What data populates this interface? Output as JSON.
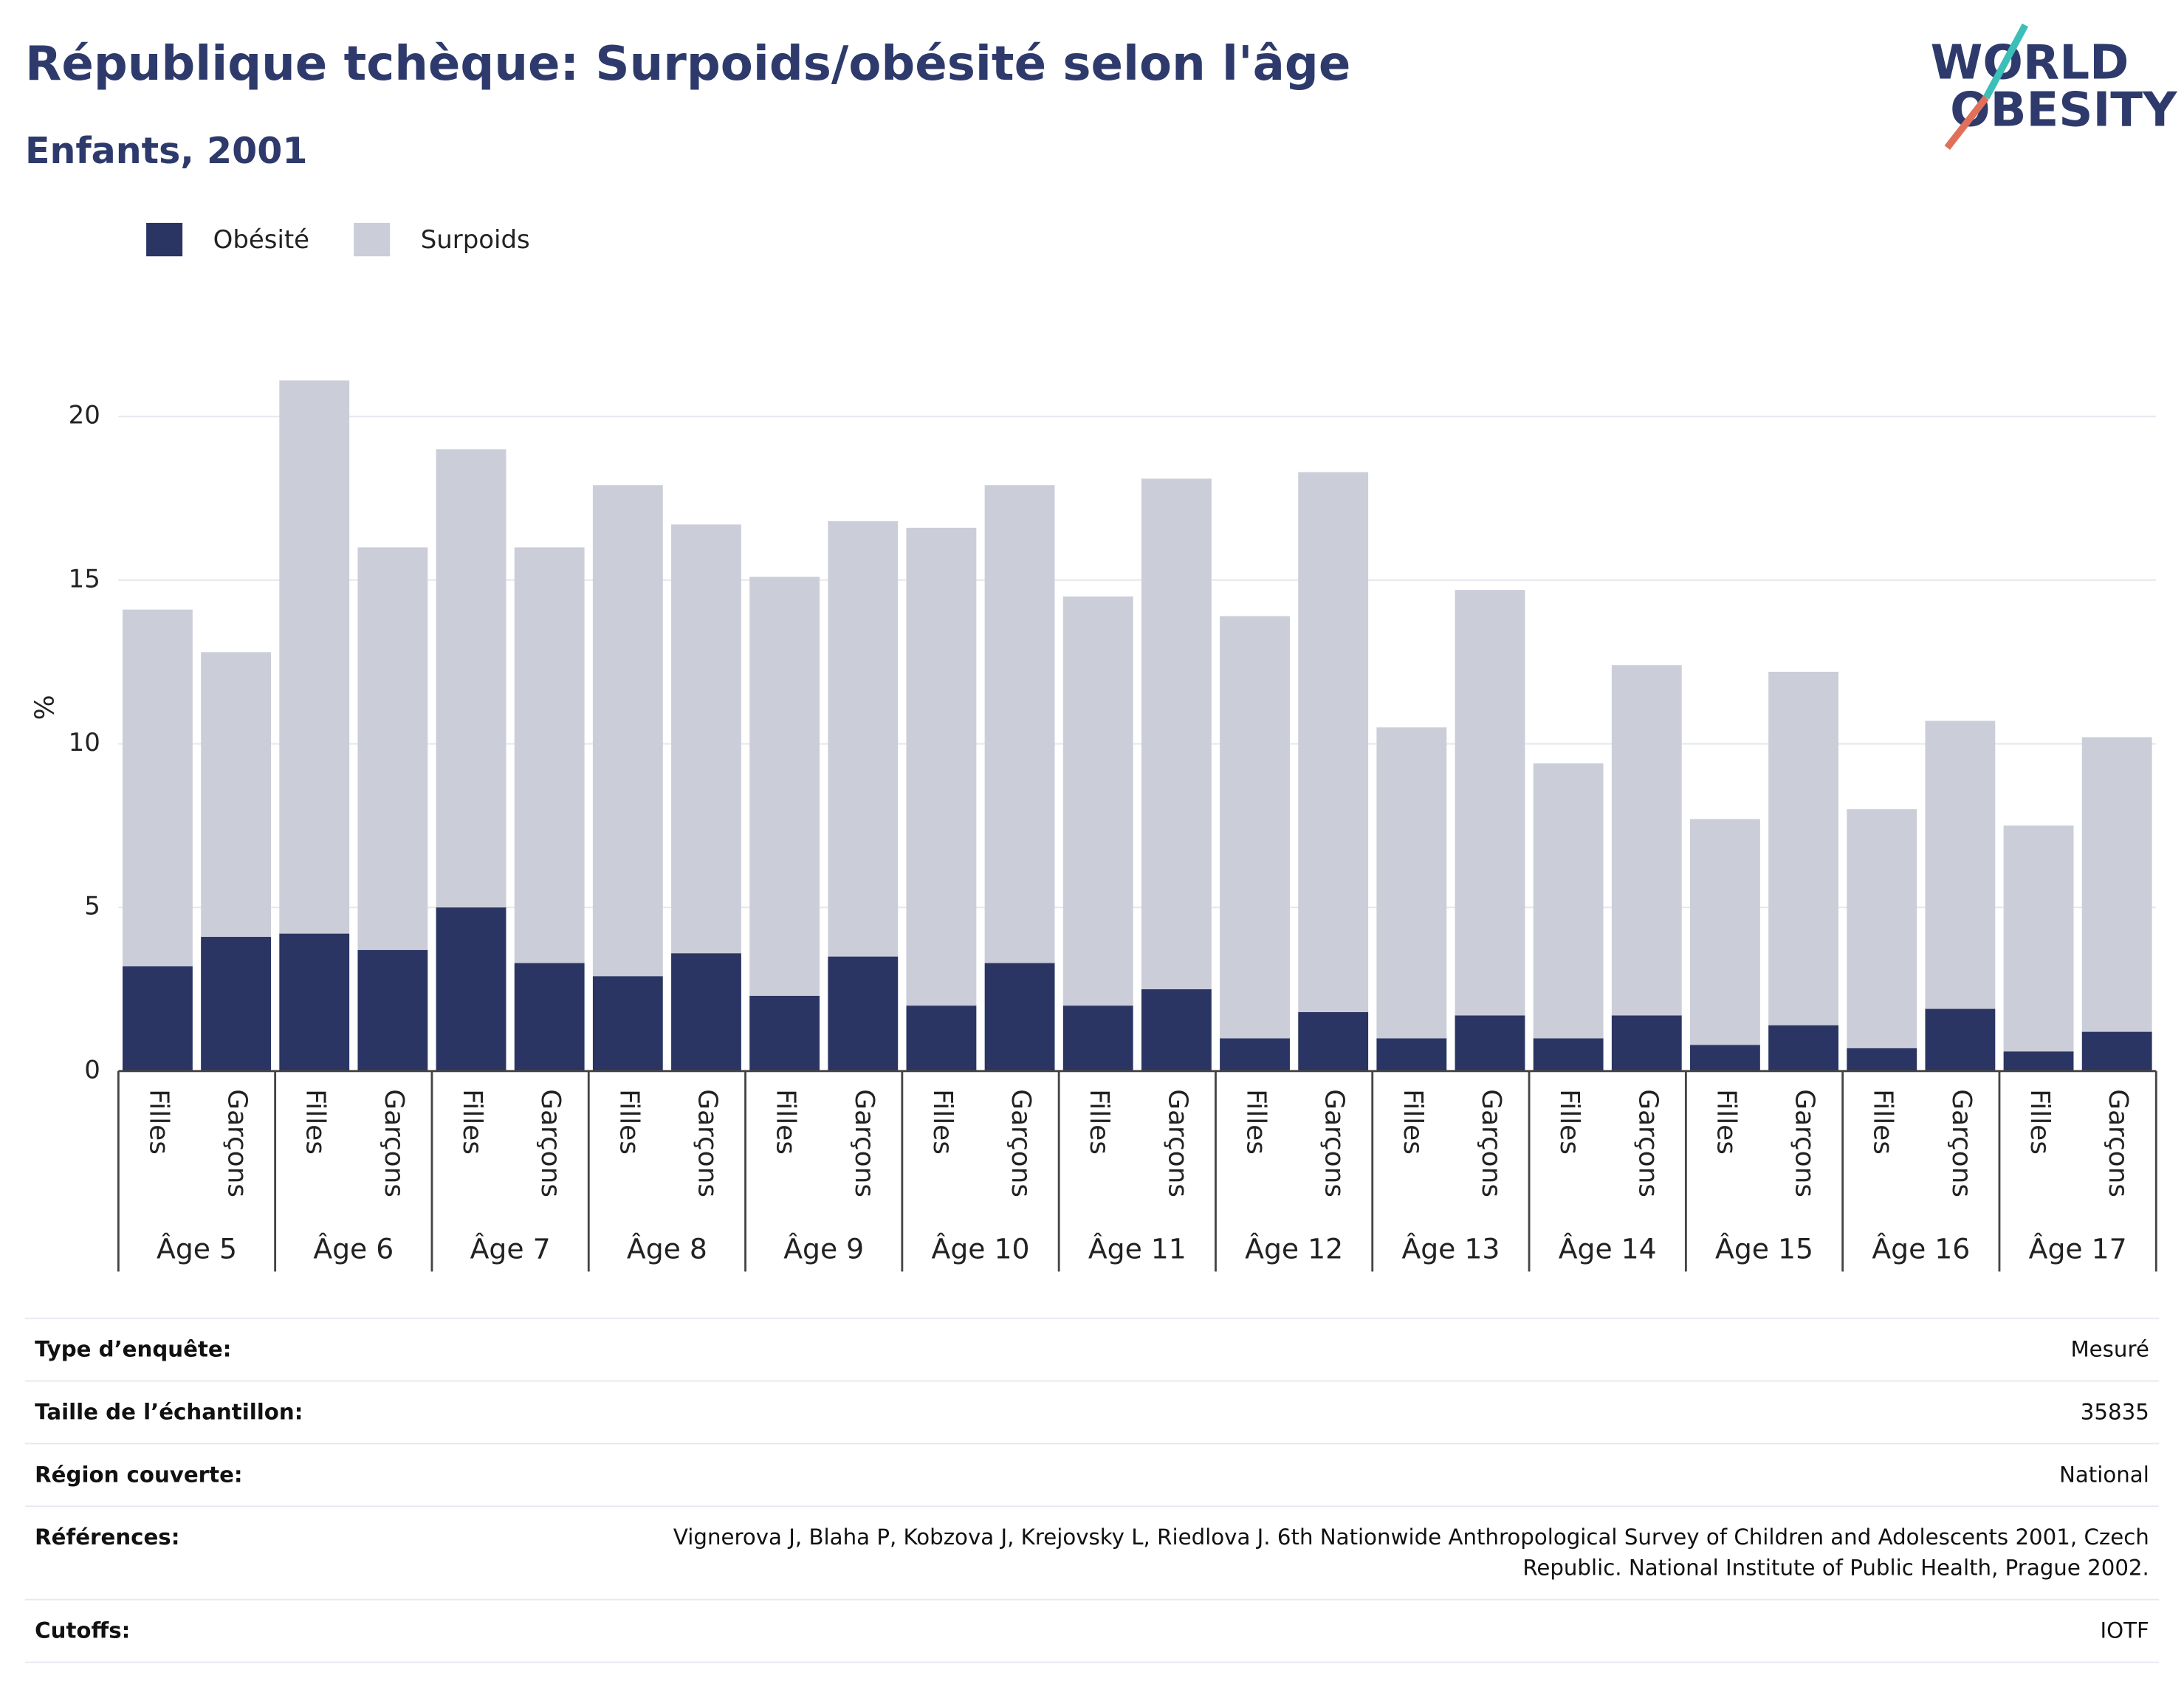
{
  "chart_data": {
    "type": "stacked_bar",
    "title": "République tchèque: Surpoids/obésité selon l'âge",
    "subtitle": "Enfants, 2001",
    "y_label": "%",
    "categories": [
      "Filles",
      "Garçons",
      "Filles",
      "Garçons",
      "Filles",
      "Garçons",
      "Filles",
      "Garçons",
      "Filles",
      "Garçons",
      "Filles",
      "Garçons",
      "Filles",
      "Garçons",
      "Filles",
      "Garçons",
      "Filles",
      "Garçons",
      "Filles",
      "Garçons",
      "Filles",
      "Garçons",
      "Filles",
      "Garçons",
      "Filles",
      "Garçons"
    ],
    "groups": [
      "Âge 5",
      "Âge 6",
      "Âge 7",
      "Âge 8",
      "Âge 9",
      "Âge 10",
      "Âge 11",
      "Âge 12",
      "Âge 13",
      "Âge 14",
      "Âge 15",
      "Âge 16",
      "Âge 17"
    ],
    "series": [
      {
        "name": "Obésité",
        "color": "#2a3563",
        "values": [
          3.2,
          4.1,
          4.2,
          3.7,
          5.0,
          3.3,
          2.9,
          3.6,
          2.3,
          3.5,
          2.0,
          3.3,
          2.0,
          2.5,
          1.0,
          1.8,
          1.0,
          1.7,
          1.0,
          1.7,
          0.8,
          1.4,
          0.7,
          1.9,
          0.6,
          1.2
        ]
      },
      {
        "name": "Surpoids",
        "color": "#cbcdd8",
        "values": [
          10.9,
          8.7,
          16.9,
          12.3,
          14.0,
          12.7,
          15.0,
          13.1,
          12.8,
          13.3,
          14.6,
          14.6,
          12.5,
          15.6,
          12.9,
          16.5,
          9.5,
          13.0,
          8.4,
          10.7,
          6.9,
          10.8,
          7.3,
          8.8,
          6.9,
          9.0
        ]
      }
    ],
    "ylim": [
      0,
      22.5
    ],
    "yticks": [
      0,
      5,
      10,
      15,
      20
    ],
    "grid": true,
    "legend": "top-left"
  },
  "logo": {
    "line1": "WORLD",
    "line2": "OBESITY"
  },
  "info": [
    {
      "label": "Type d’enquête:",
      "value": "Mesuré"
    },
    {
      "label": "Taille de l’échantillon:",
      "value": "35835"
    },
    {
      "label": "Région couverte:",
      "value": "National"
    },
    {
      "label": "Références:",
      "value": "Vignerova J, Blaha P, Kobzova J, Krejovsky L, Riedlova J. 6th Nationwide Anthropological Survey of Children and Adolescents 2001, Czech Republic. National Institute of Public Health, Prague 2002."
    },
    {
      "label": "Cutoffs:",
      "value": "IOTF"
    }
  ]
}
